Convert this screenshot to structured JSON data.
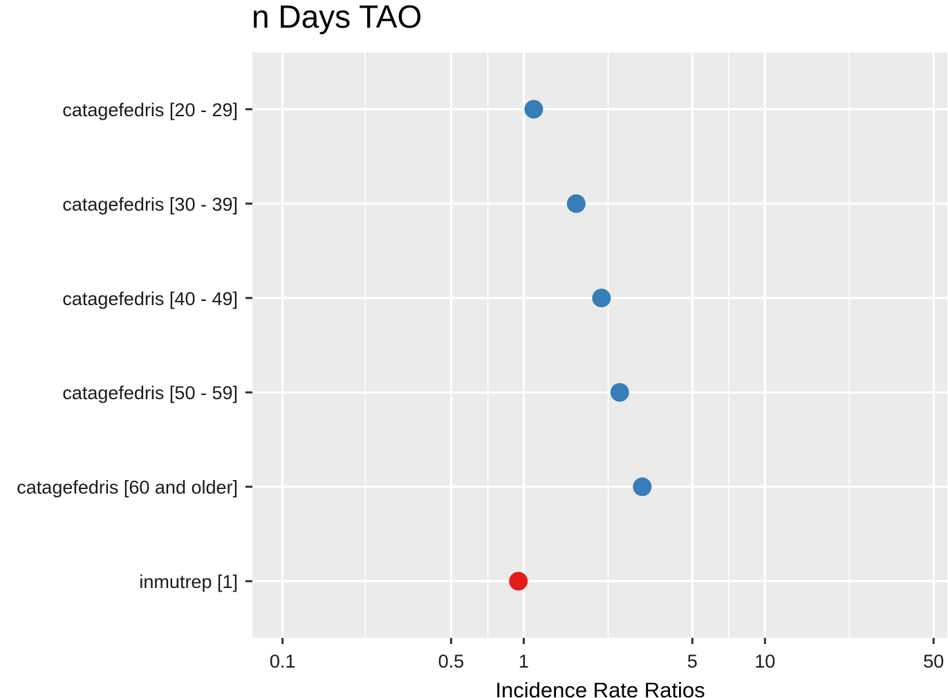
{
  "chart_data": {
    "type": "scatter",
    "title": "n Days TAO",
    "xlabel": "Incidence Rate Ratios",
    "ylabel": "",
    "x_scale": "log10",
    "xlim": [
      0.075,
      57
    ],
    "x_ticks": [
      0.1,
      0.5,
      1,
      5,
      10,
      50
    ],
    "x_tick_labels": [
      "0.1",
      "0.5",
      "1",
      "5",
      "10",
      "50"
    ],
    "x_minor_gridlines": [
      0.22,
      0.71,
      2.24,
      7.07,
      22.36
    ],
    "grid": true,
    "legend": "none",
    "panel_background": "#EBEBEB",
    "gridline_color": "#FFFFFF",
    "categories": [
      "catagefedris [20 - 29]",
      "catagefedris [30 - 39]",
      "catagefedris [40 - 49]",
      "catagefedris [50 - 59]",
      "catagefedris [60 and older]",
      "inmutrep [1]"
    ],
    "values": [
      1.1,
      1.65,
      2.1,
      2.5,
      3.1,
      0.95
    ],
    "point_colors": [
      "#377EB8",
      "#377EB8",
      "#377EB8",
      "#377EB8",
      "#377EB8",
      "#E41A1C"
    ]
  }
}
